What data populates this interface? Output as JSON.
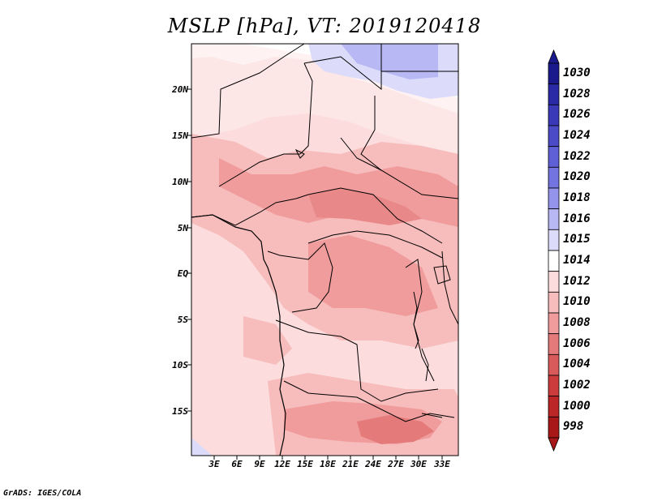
{
  "title": "MSLP [hPa], VT: 2019120418",
  "credit": "GrADS: IGES/COLA",
  "lat_labels": [
    "20N",
    "15N",
    "10N",
    "5N",
    "EQ",
    "5S",
    "10S",
    "15S"
  ],
  "lon_labels": [
    "3E",
    "6E",
    "9E",
    "12E",
    "15E",
    "18E",
    "21E",
    "24E",
    "27E",
    "30E",
    "33E"
  ],
  "colorbar": {
    "levels": [
      "1030",
      "1028",
      "1026",
      "1024",
      "1022",
      "1020",
      "1018",
      "1016",
      "1015",
      "1014",
      "1012",
      "1010",
      "1008",
      "1006",
      "1004",
      "1002",
      "1000",
      "998"
    ],
    "colors": [
      "#1a1a8c",
      "#2a2aa6",
      "#3a3ab8",
      "#4b4bc8",
      "#5f5fd6",
      "#7474e0",
      "#9494ec",
      "#b8b8f4",
      "#dcdcfa",
      "#ffffff",
      "#fcdcdc",
      "#f7bcbc",
      "#f09c9c",
      "#e57a7a",
      "#d85a5a",
      "#cc3c3c",
      "#bb2626",
      "#a81818"
    ]
  }
}
